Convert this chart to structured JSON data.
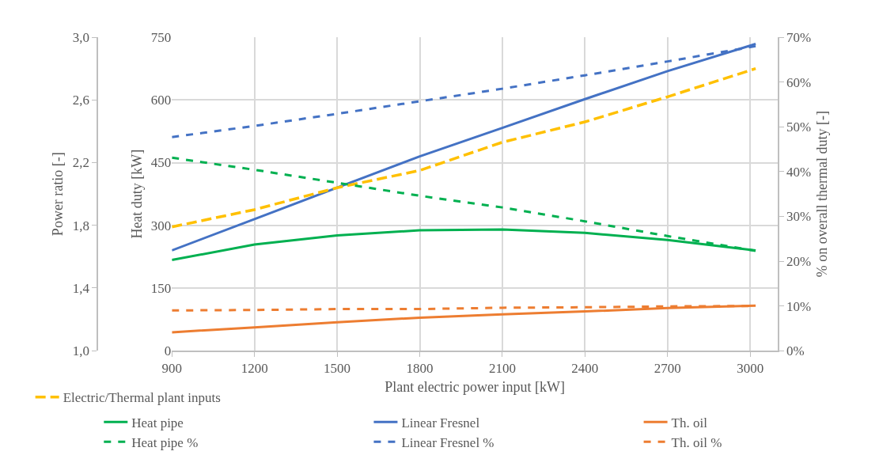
{
  "chart_data": {
    "type": "line",
    "xlabel": "Plant electric power input [kW]",
    "ylabel": "Heat duty [kW]",
    "y2label": "Power ratio [-]",
    "y3label": "% on overall thermal duty [-]",
    "x": [
      900,
      1200,
      1500,
      1800,
      2100,
      2400,
      2700,
      3020
    ],
    "xlim": [
      900,
      3100
    ],
    "xticks": [
      900,
      1200,
      1500,
      1800,
      2100,
      2400,
      2700,
      3000
    ],
    "ylim": [
      0,
      750
    ],
    "yticks": [
      0,
      150,
      300,
      450,
      600,
      750
    ],
    "y2lim": [
      1.0,
      3.0
    ],
    "y2ticks": [
      {
        "value": 1.0,
        "label": "1,0"
      },
      {
        "value": 1.4,
        "label": "1,4"
      },
      {
        "value": 1.8,
        "label": "1,8"
      },
      {
        "value": 2.2,
        "label": "2,2"
      },
      {
        "value": 2.6,
        "label": "2,6"
      },
      {
        "value": 3.0,
        "label": "3,0"
      }
    ],
    "y3lim": [
      0,
      70
    ],
    "y3ticks": [
      {
        "value": 0,
        "label": "0%"
      },
      {
        "value": 10,
        "label": "10%"
      },
      {
        "value": 20,
        "label": "20%"
      },
      {
        "value": 30,
        "label": "30%"
      },
      {
        "value": 40,
        "label": "40%"
      },
      {
        "value": 50,
        "label": "50%"
      },
      {
        "value": 60,
        "label": "60%"
      },
      {
        "value": 70,
        "label": "70%"
      }
    ],
    "grid": true,
    "legend": "bottom",
    "series": [
      {
        "name": "Electric/Thermal plant inputs",
        "color": "#ffc000",
        "axis": "y2",
        "line_style": "dashed",
        "values": [
          1.79,
          1.9,
          2.04,
          2.15,
          2.33,
          2.46,
          2.62,
          2.8
        ]
      },
      {
        "name": "Heat pipe",
        "color": "#00b050",
        "axis": "y",
        "line_style": "solid",
        "values": [
          217,
          254,
          276,
          288,
          290,
          282,
          265,
          240
        ]
      },
      {
        "name": "Linear Fresnel",
        "color": "#4472c4",
        "axis": "y",
        "line_style": "solid",
        "values": [
          240,
          315,
          390,
          465,
          533,
          602,
          669,
          734
        ]
      },
      {
        "name": "Th. oil",
        "color": "#ed7d31",
        "axis": "y",
        "line_style": "solid",
        "values": [
          44,
          56,
          68,
          79,
          87,
          94,
          102,
          108
        ]
      },
      {
        "name": "Heat pipe %",
        "color": "#00b050",
        "axis": "y3",
        "line_style": "dotted",
        "values": [
          43.1,
          40.4,
          37.5,
          34.6,
          32.0,
          28.9,
          25.6,
          22.3
        ]
      },
      {
        "name": "Linear Fresnel %",
        "color": "#4472c4",
        "axis": "y3",
        "line_style": "dotted",
        "values": [
          47.7,
          50.2,
          52.9,
          55.7,
          58.5,
          61.5,
          64.6,
          68.0
        ]
      },
      {
        "name": "Th. oil %",
        "color": "#ed7d31",
        "axis": "y3",
        "line_style": "dotted",
        "values": [
          9.0,
          9.1,
          9.3,
          9.3,
          9.6,
          9.7,
          9.9,
          10.0
        ]
      }
    ]
  }
}
